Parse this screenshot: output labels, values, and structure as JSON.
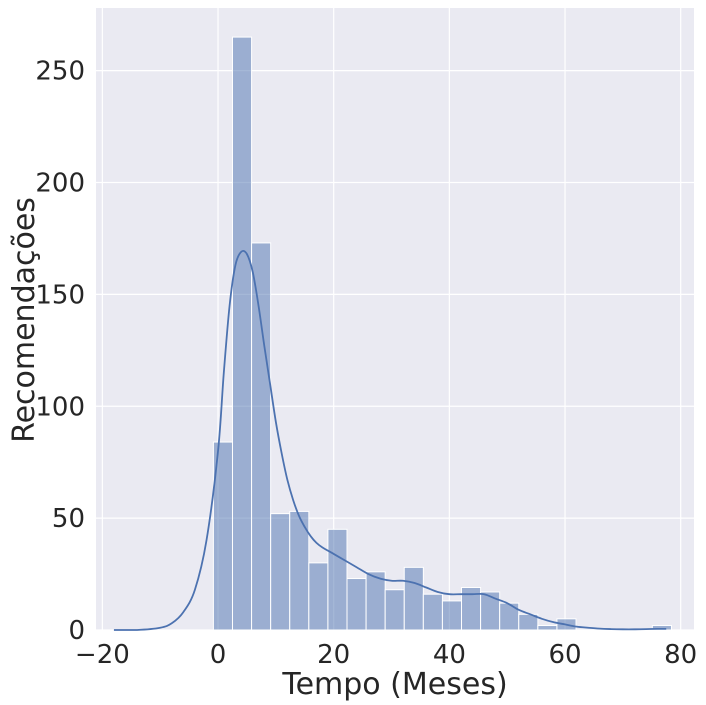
{
  "chart_data": {
    "type": "bar",
    "subtype": "histogram with kde line",
    "title": "",
    "xlabel": "Tempo (Meses)",
    "ylabel": "Recomendações",
    "xlim": [
      -20,
      80
    ],
    "ylim": [
      0,
      278
    ],
    "x_ticks": [
      -20,
      0,
      20,
      40,
      60,
      80
    ],
    "x_tick_labels": [
      "−20",
      "0",
      "20",
      "40",
      "60",
      "80"
    ],
    "y_ticks": [
      0,
      50,
      100,
      150,
      200,
      250
    ],
    "y_tick_labels": [
      "0",
      "50",
      "100",
      "150",
      "200",
      "250"
    ],
    "grid": true,
    "legend": "none",
    "colors": {
      "background": "#eaeaf2",
      "grid": "#ffffff",
      "bar_fill": "#4c72b0",
      "bar_opacity": 0.5,
      "bar_edge": "#ffffff",
      "kde_line": "#4c72b0"
    },
    "bins": [
      {
        "x0": -0.8,
        "x1": 2.5,
        "count": 84
      },
      {
        "x0": 2.5,
        "x1": 5.8,
        "count": 265
      },
      {
        "x0": 5.8,
        "x1": 9.1,
        "count": 173
      },
      {
        "x0": 9.1,
        "x1": 12.4,
        "count": 52
      },
      {
        "x0": 12.4,
        "x1": 15.7,
        "count": 53
      },
      {
        "x0": 15.7,
        "x1": 19.0,
        "count": 30
      },
      {
        "x0": 19.0,
        "x1": 22.3,
        "count": 45
      },
      {
        "x0": 22.3,
        "x1": 25.6,
        "count": 23
      },
      {
        "x0": 25.6,
        "x1": 28.9,
        "count": 26
      },
      {
        "x0": 28.9,
        "x1": 32.2,
        "count": 18
      },
      {
        "x0": 32.2,
        "x1": 35.5,
        "count": 28
      },
      {
        "x0": 35.5,
        "x1": 38.8,
        "count": 16
      },
      {
        "x0": 38.8,
        "x1": 42.1,
        "count": 13
      },
      {
        "x0": 42.1,
        "x1": 45.4,
        "count": 19
      },
      {
        "x0": 45.4,
        "x1": 48.7,
        "count": 17
      },
      {
        "x0": 48.7,
        "x1": 52.0,
        "count": 12
      },
      {
        "x0": 52.0,
        "x1": 55.3,
        "count": 7
      },
      {
        "x0": 55.3,
        "x1": 58.6,
        "count": 2
      },
      {
        "x0": 58.6,
        "x1": 61.9,
        "count": 5
      },
      {
        "x0": 61.9,
        "x1": 65.2,
        "count": 0
      },
      {
        "x0": 65.2,
        "x1": 68.5,
        "count": 0
      },
      {
        "x0": 68.5,
        "x1": 71.8,
        "count": 0
      },
      {
        "x0": 71.8,
        "x1": 75.1,
        "count": 0
      },
      {
        "x0": 75.1,
        "x1": 78.4,
        "count": 2
      }
    ],
    "kde": {
      "x": [
        -18,
        -14,
        -10,
        -8,
        -6,
        -4,
        -2,
        0,
        1,
        2,
        3,
        4,
        5,
        6,
        7,
        8,
        9,
        10,
        11,
        12,
        13,
        14,
        15,
        16,
        17,
        18,
        20,
        22,
        24,
        26,
        28,
        30,
        32,
        34,
        36,
        38,
        40,
        42,
        44,
        46,
        48,
        50,
        52,
        54,
        56,
        58,
        60,
        62,
        64,
        66,
        68,
        70,
        72,
        74,
        76,
        77.5
      ],
      "y": [
        0,
        0,
        1,
        3,
        8,
        18,
        40,
        80,
        115,
        145,
        163,
        169,
        168,
        160,
        145,
        127,
        110,
        93,
        79,
        67,
        58,
        51,
        46,
        42,
        39,
        37,
        34,
        31,
        28,
        25,
        23,
        22,
        22,
        21,
        19,
        17,
        16,
        16,
        16,
        16,
        14,
        12,
        9,
        7,
        5,
        3.5,
        2.5,
        1.5,
        1,
        0.6,
        0.4,
        0.3,
        0.3,
        0.4,
        0.5,
        0.5
      ]
    }
  }
}
